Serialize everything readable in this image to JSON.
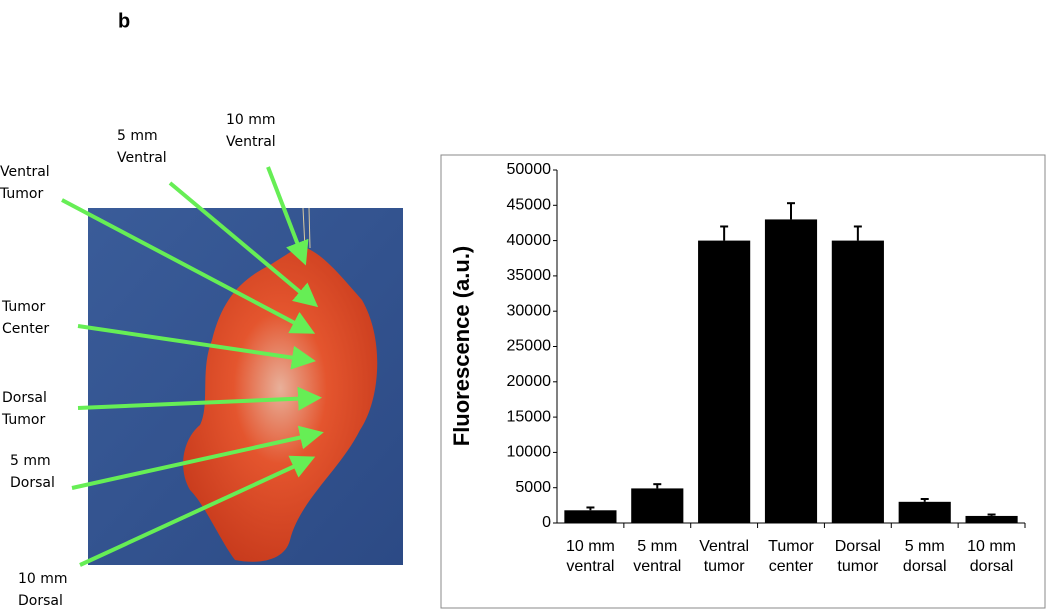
{
  "panel_label": "b",
  "annotations": [
    [
      "10 mm",
      "Ventral"
    ],
    [
      "5 mm",
      "Ventral"
    ],
    [
      "Ventral",
      "Tumor"
    ],
    [
      "Tumor",
      "Center"
    ],
    [
      "Dorsal",
      "Tumor"
    ],
    [
      "5 mm",
      "Dorsal"
    ],
    [
      "10 mm",
      "Dorsal"
    ]
  ],
  "chart_data": {
    "type": "bar",
    "y_label": "Fluorescence (a.u.)",
    "categories": [
      [
        "10 mm",
        "ventral"
      ],
      [
        "5 mm",
        "ventral"
      ],
      [
        "Ventral",
        "tumor"
      ],
      [
        "Tumor",
        "center"
      ],
      [
        "Dorsal",
        "tumor"
      ],
      [
        "5 mm",
        "dorsal"
      ],
      [
        "10 mm",
        "dorsal"
      ]
    ],
    "values": [
      1800,
      4900,
      40000,
      43000,
      40000,
      3000,
      1000
    ],
    "errors": [
      400,
      600,
      2000,
      2300,
      2000,
      400,
      200
    ],
    "color": "#000000",
    "ylim": [
      0,
      50000
    ],
    "yticks": [
      0,
      5000,
      10000,
      15000,
      20000,
      25000,
      30000,
      35000,
      40000,
      45000,
      50000
    ]
  }
}
